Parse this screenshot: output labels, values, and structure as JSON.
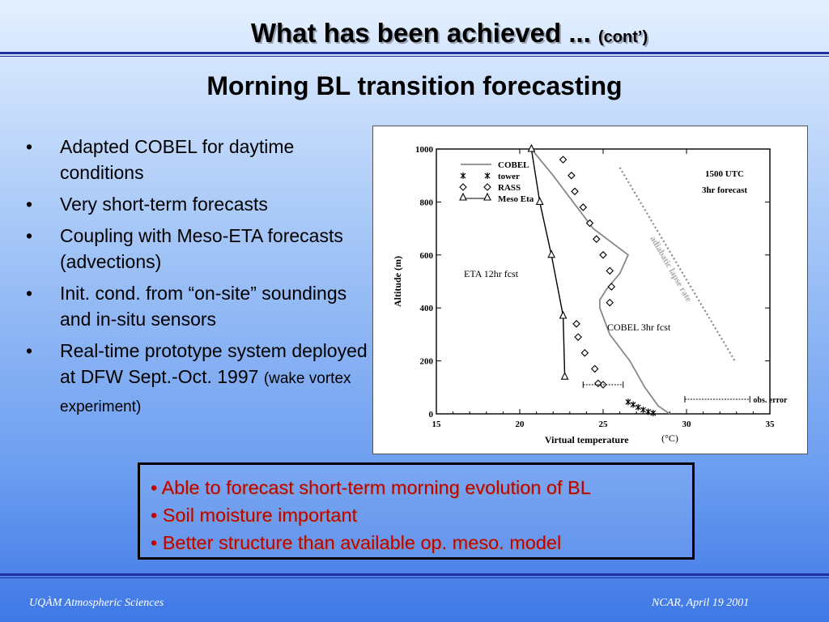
{
  "slide": {
    "title_main": "What has been achieved ...",
    "title_cont": "(cont’)",
    "subtitle": "Morning BL transition forecasting",
    "bullets": [
      {
        "text": "Adapted COBEL for daytime conditions",
        "small": ""
      },
      {
        "text": "Very short-term forecasts",
        "small": ""
      },
      {
        "text": "Coupling with Meso-ETA forecasts (advections)",
        "small": ""
      },
      {
        "text": "Init. cond. from “on-site” soundings and in-situ sensors",
        "small": ""
      },
      {
        "text": "Real-time prototype system deployed at DFW Sept.-Oct. 1997 ",
        "small": "(wake vortex experiment)"
      }
    ],
    "callout": [
      "• Able to forecast short-term morning evolution of BL",
      "• Soil moisture important",
      "• Better structure than available op. meso. model"
    ],
    "footer_left": "UQÀM Atmospheric Sciences",
    "footer_right": "NCAR, April 19 2001",
    "colors": {
      "callout_text": "#c00000",
      "rule": "#1f2f9f"
    }
  },
  "chart_data": {
    "type": "line",
    "xlabel": "Virtual temperature",
    "xunit": "(°C)",
    "ylabel": "Altitude (m)",
    "xlim": [
      15,
      35
    ],
    "ylim": [
      0,
      1000
    ],
    "xticks": [
      15,
      20,
      25,
      30,
      35
    ],
    "yticks": [
      0,
      200,
      400,
      600,
      800,
      1000
    ],
    "annotation_top_right": [
      "1500 UTC",
      "3hr forecast"
    ],
    "annotations": [
      "ETA 12hr fcst",
      "COBEL 3hr fcst",
      "adiabatic lapse rate",
      "obs. error"
    ],
    "legend": [
      "COBEL",
      "tower",
      "RASS",
      "Meso Eta"
    ],
    "series": [
      {
        "name": "COBEL",
        "style": "line",
        "x": [
          20.7,
          22.0,
          23.2,
          24.4,
          26.5,
          26.0,
          25.2,
          24.8,
          24.8,
          25.4,
          26.6,
          27.5,
          28.3,
          29.0
        ],
        "y": [
          1000,
          900,
          800,
          700,
          600,
          530,
          470,
          430,
          400,
          300,
          200,
          100,
          30,
          0
        ]
      },
      {
        "name": "tower",
        "style": "star",
        "x": [
          26.5,
          26.8,
          27.1,
          27.4,
          27.7,
          28.0
        ],
        "y": [
          45,
          35,
          25,
          15,
          8,
          3
        ]
      },
      {
        "name": "RASS",
        "style": "diamond",
        "x": [
          22.6,
          23.1,
          23.3,
          23.8,
          24.2,
          24.6,
          25.0,
          25.4,
          25.5,
          25.4,
          23.4,
          23.5,
          23.9,
          24.5,
          24.7,
          25.0
        ],
        "y": [
          960,
          900,
          840,
          780,
          720,
          660,
          600,
          540,
          480,
          420,
          340,
          290,
          230,
          170,
          115,
          110
        ]
      },
      {
        "name": "Meso Eta",
        "style": "triangle",
        "x": [
          20.7,
          21.2,
          21.9,
          22.6,
          22.7
        ],
        "y": [
          1000,
          800,
          600,
          370,
          140
        ]
      },
      {
        "name": "adiabatic lapse rate",
        "style": "dotted",
        "x": [
          26.0,
          32.9
        ],
        "y": [
          930,
          200
        ]
      }
    ]
  }
}
